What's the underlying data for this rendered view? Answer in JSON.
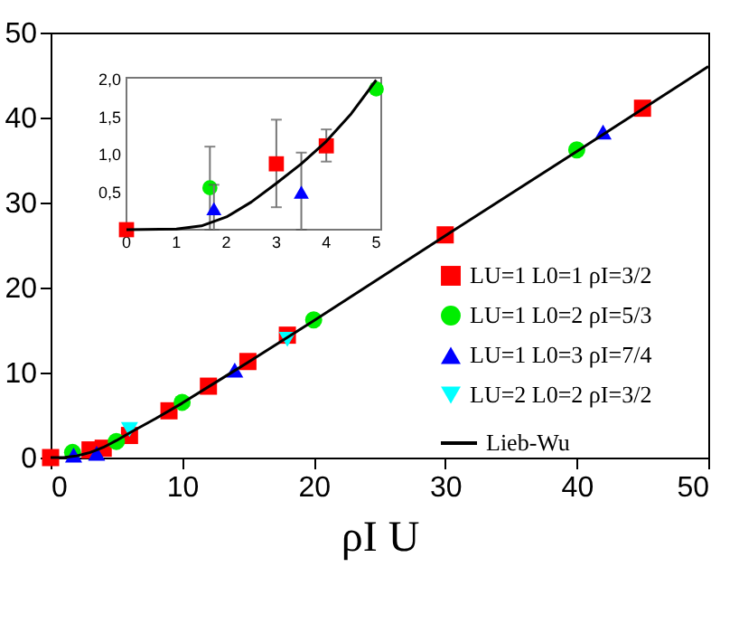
{
  "chart_data": [
    {
      "type": "scatter",
      "xlabel": "ρI U",
      "xlim": [
        0,
        50
      ],
      "ylim": [
        0,
        50
      ],
      "xticks": [
        0,
        10,
        20,
        30,
        40,
        50
      ],
      "yticks": [
        0,
        10,
        20,
        30,
        40,
        50
      ],
      "grid": false,
      "legend": "bottom right",
      "series": [
        {
          "name": "LU=1 L0=1  ρI=3/2",
          "color": "#ff0000",
          "marker": "square",
          "x": [
            0,
            3,
            4,
            6,
            9,
            12,
            15,
            18,
            30,
            45
          ],
          "values": [
            0,
            0.9,
            1.1,
            2.6,
            5.5,
            8.4,
            11.3,
            14.4,
            26.2,
            41.1
          ]
        },
        {
          "name": "LU=1 L0=2  ρI=5/3",
          "color": "#00ee00",
          "marker": "circle",
          "x": [
            1.67,
            5,
            10,
            20,
            40
          ],
          "values": [
            0.6,
            1.9,
            6.5,
            16.2,
            36.2
          ]
        },
        {
          "name": "LU=1 L0=3  ρI=7/4",
          "color": "#0000ff",
          "marker": "triangle",
          "x": [
            1.75,
            3.5,
            14,
            42
          ],
          "values": [
            0.3,
            0.5,
            10.3,
            38.3
          ]
        },
        {
          "name": "LU=2 L0=2  ρI=3/2",
          "color": "#00ffff",
          "marker": "triangle-down",
          "x": [
            6,
            18
          ],
          "values": [
            3.3,
            13.9
          ]
        },
        {
          "name": "Lieb-Wu",
          "type": "line",
          "line_style": "solid",
          "color": "#000000",
          "x": [
            0,
            1,
            1.5,
            2,
            2.5,
            3,
            3.5,
            4,
            4.5,
            5,
            6,
            8,
            10,
            15,
            20,
            30,
            40,
            50
          ],
          "values": [
            0,
            0,
            0.1,
            0.2,
            0.4,
            0.6,
            0.9,
            1.2,
            1.6,
            2.0,
            2.9,
            4.6,
            6.4,
            11.2,
            16.1,
            26.1,
            36,
            46
          ]
        }
      ]
    },
    {
      "type": "scatter",
      "xlim": [
        0,
        5.1
      ],
      "ylim": [
        0,
        2.03
      ],
      "xticks": [
        0,
        1,
        2,
        3,
        4,
        5
      ],
      "yticks": [
        {
          "value": 0.5,
          "label": "0,5"
        },
        {
          "value": 1,
          "label": "1,0"
        },
        {
          "value": 1.5,
          "label": "1,5"
        },
        {
          "value": 2,
          "label": "2,0"
        }
      ],
      "grid": false,
      "series": [
        {
          "color": "#ff0000",
          "marker": "square",
          "x": [
            0,
            3,
            4
          ],
          "values": [
            0,
            0.88,
            1.12
          ],
          "errors": [
            null,
            [
              0.3,
              1.47
            ],
            [
              0.91,
              1.34
            ]
          ]
        },
        {
          "color": "#00ee00",
          "marker": "circle",
          "x": [
            1.67,
            5
          ],
          "values": [
            0.56,
            1.88
          ],
          "errors": [
            [
              0,
              1.11
            ],
            [
              1.82,
              1.95
            ]
          ]
        },
        {
          "color": "#0000ff",
          "marker": "triangle",
          "x": [
            1.75,
            3.5
          ],
          "values": [
            0.28,
            0.5
          ],
          "errors": [
            [
              0,
              0.6
            ],
            [
              0,
              1.03
            ]
          ]
        },
        {
          "type": "line",
          "color": "#000000",
          "x": [
            0,
            1,
            1.5,
            2,
            2.5,
            3,
            3.5,
            4,
            4.5,
            5
          ],
          "values": [
            0,
            0.01,
            0.05,
            0.17,
            0.37,
            0.62,
            0.88,
            1.18,
            1.55,
            2.0
          ]
        }
      ]
    }
  ]
}
